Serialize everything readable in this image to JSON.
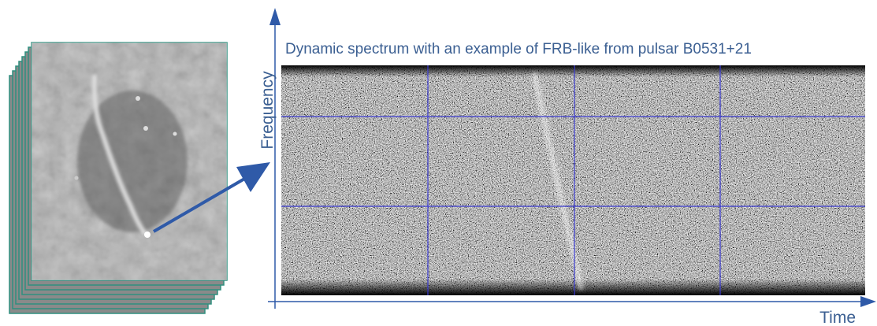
{
  "title": "Dynamic spectrum with an example of FRB-like from pulsar B0531+21",
  "axes": {
    "y_label": "Frequency",
    "x_label": "Time"
  }
}
